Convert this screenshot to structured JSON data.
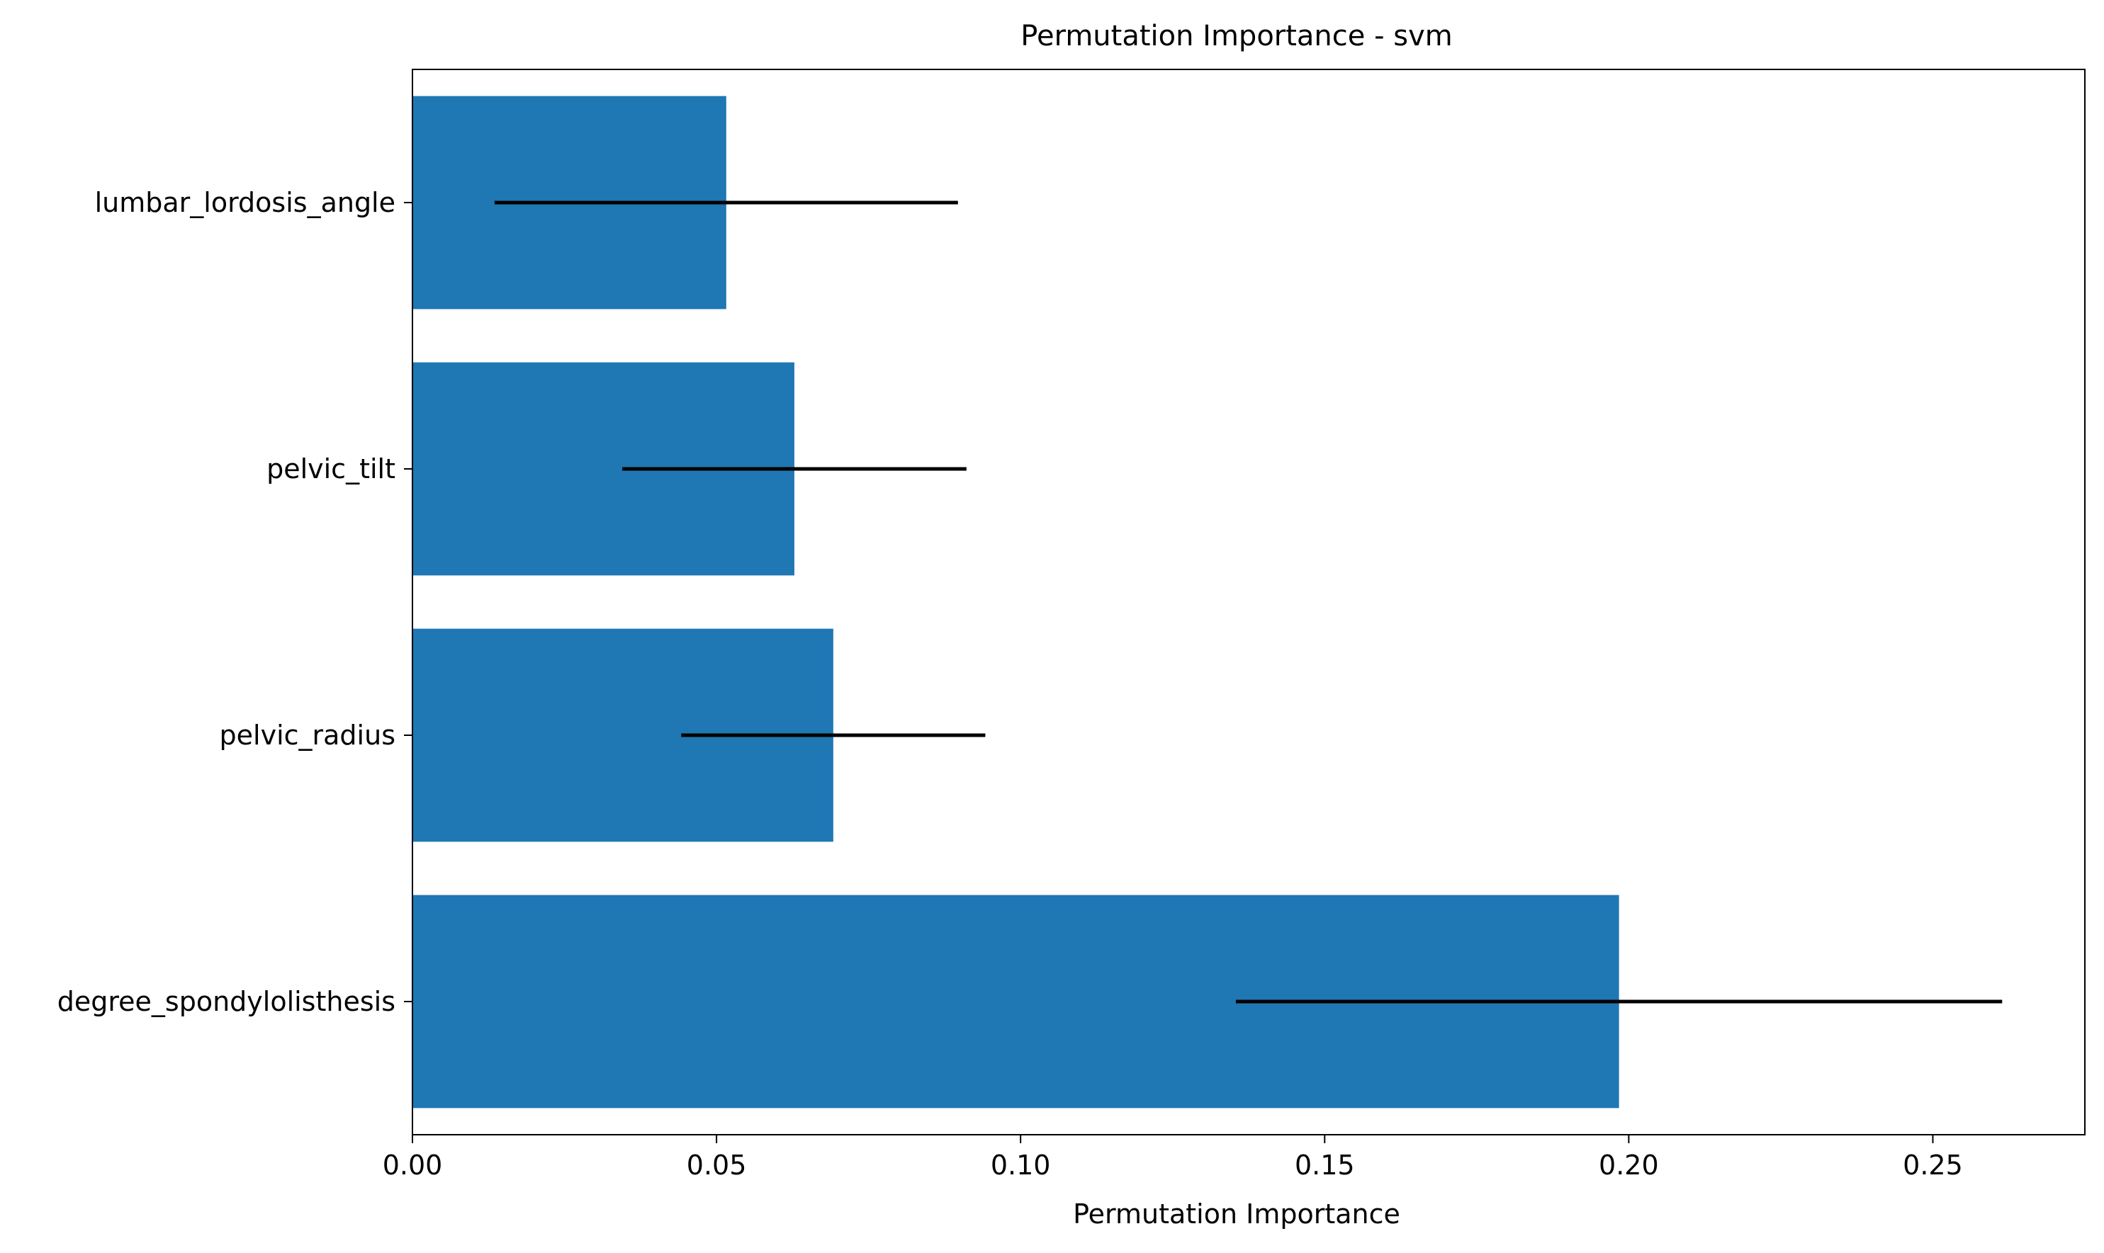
{
  "chart_data": {
    "type": "bar",
    "orientation": "horizontal",
    "title": "Permutation Importance - svm",
    "xlabel": "Permutation Importance",
    "ylabel": "",
    "xlim": [
      0,
      0.275
    ],
    "x_ticks": [
      0.0,
      0.05,
      0.1,
      0.15,
      0.2,
      0.25
    ],
    "x_tick_labels": [
      "0.00",
      "0.05",
      "0.10",
      "0.15",
      "0.20",
      "0.25"
    ],
    "categories": [
      "lumbar_lordosis_angle",
      "pelvic_tilt",
      "pelvic_radius",
      "degree_spondylolisthesis"
    ],
    "values": [
      0.0516,
      0.0628,
      0.0692,
      0.1984
    ],
    "errors": [
      0.0381,
      0.0283,
      0.025,
      0.063
    ],
    "grid": false,
    "legend": "none",
    "colors": {
      "bar": "#1f77b4",
      "error_bar": "#000000",
      "axis": "#000000",
      "background": "#ffffff"
    }
  }
}
